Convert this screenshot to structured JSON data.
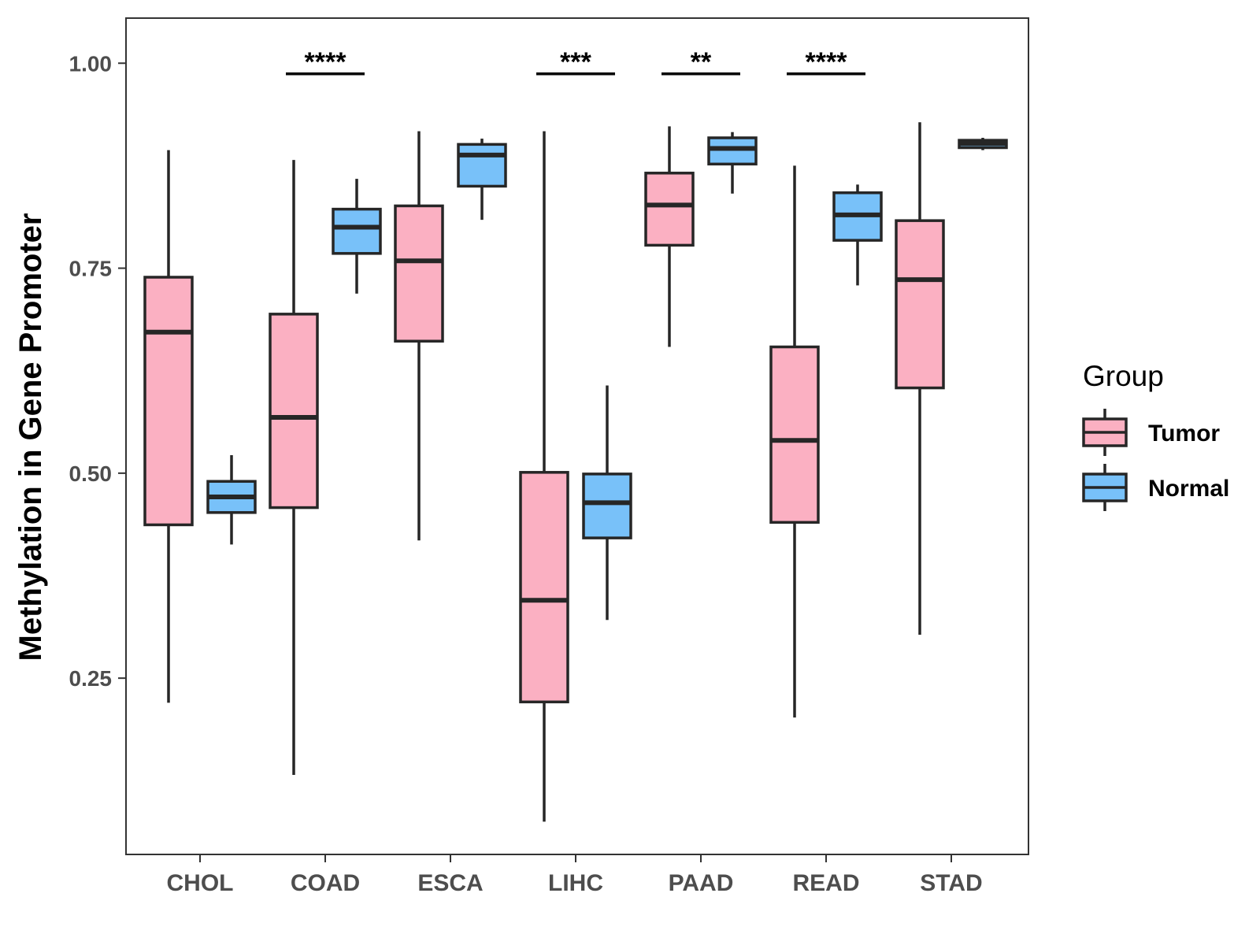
{
  "chart_data": {
    "type": "boxplot",
    "title": "",
    "xlabel": "",
    "ylabel": "Methylation in Gene Promoter",
    "ylim": [
      0.035,
      1.055
    ],
    "yticks": [
      0.25,
      0.5,
      0.75,
      1.0
    ],
    "ytick_labels": [
      "0.25",
      "0.50",
      "0.75",
      "1.00"
    ],
    "categories": [
      "CHOL",
      "COAD",
      "ESCA",
      "LIHC",
      "PAAD",
      "READ",
      "STAD"
    ],
    "legend": {
      "title": "Group",
      "position": "right",
      "entries": [
        {
          "name": "Tumor",
          "color": "#FBB0C2"
        },
        {
          "name": "Normal",
          "color": "#78C1F9"
        }
      ]
    },
    "series": [
      {
        "name": "Tumor",
        "color": "#FBB0C2",
        "boxes": [
          {
            "category": "CHOL",
            "min": 0.22,
            "q1": 0.437,
            "median": 0.672,
            "q3": 0.739,
            "max": 0.894
          },
          {
            "category": "COAD",
            "min": 0.132,
            "q1": 0.458,
            "median": 0.568,
            "q3": 0.694,
            "max": 0.882
          },
          {
            "category": "ESCA",
            "min": 0.418,
            "q1": 0.661,
            "median": 0.759,
            "q3": 0.826,
            "max": 0.917
          },
          {
            "category": "LIHC",
            "min": 0.075,
            "q1": 0.221,
            "median": 0.345,
            "q3": 0.501,
            "max": 0.917
          },
          {
            "category": "PAAD",
            "min": 0.654,
            "q1": 0.778,
            "median": 0.827,
            "q3": 0.866,
            "max": 0.923
          },
          {
            "category": "READ",
            "min": 0.202,
            "q1": 0.44,
            "median": 0.54,
            "q3": 0.654,
            "max": 0.875
          },
          {
            "category": "STAD",
            "min": 0.303,
            "q1": 0.604,
            "median": 0.736,
            "q3": 0.808,
            "max": 0.928
          }
        ]
      },
      {
        "name": "Normal",
        "color": "#78C1F9",
        "boxes": [
          {
            "category": "CHOL",
            "min": 0.413,
            "q1": 0.452,
            "median": 0.471,
            "q3": 0.49,
            "max": 0.522
          },
          {
            "category": "COAD",
            "min": 0.719,
            "q1": 0.768,
            "median": 0.8,
            "q3": 0.822,
            "max": 0.859
          },
          {
            "category": "ESCA",
            "min": 0.809,
            "q1": 0.85,
            "median": 0.888,
            "q3": 0.901,
            "max": 0.908
          },
          {
            "category": "LIHC",
            "min": 0.321,
            "q1": 0.421,
            "median": 0.464,
            "q3": 0.499,
            "max": 0.607
          },
          {
            "category": "PAAD",
            "min": 0.841,
            "q1": 0.877,
            "median": 0.896,
            "q3": 0.909,
            "max": 0.916
          },
          {
            "category": "READ",
            "min": 0.729,
            "q1": 0.784,
            "median": 0.815,
            "q3": 0.842,
            "max": 0.852
          },
          {
            "category": "STAD",
            "min": 0.894,
            "q1": 0.897,
            "median": 0.902,
            "q3": 0.906,
            "max": 0.909
          }
        ]
      }
    ],
    "annotations": [
      {
        "category": "COAD",
        "label": "****",
        "y": 0.987
      },
      {
        "category": "LIHC",
        "label": "***",
        "y": 0.987
      },
      {
        "category": "PAAD",
        "label": "**",
        "y": 0.987
      },
      {
        "category": "READ",
        "label": "****",
        "y": 0.987
      }
    ]
  }
}
